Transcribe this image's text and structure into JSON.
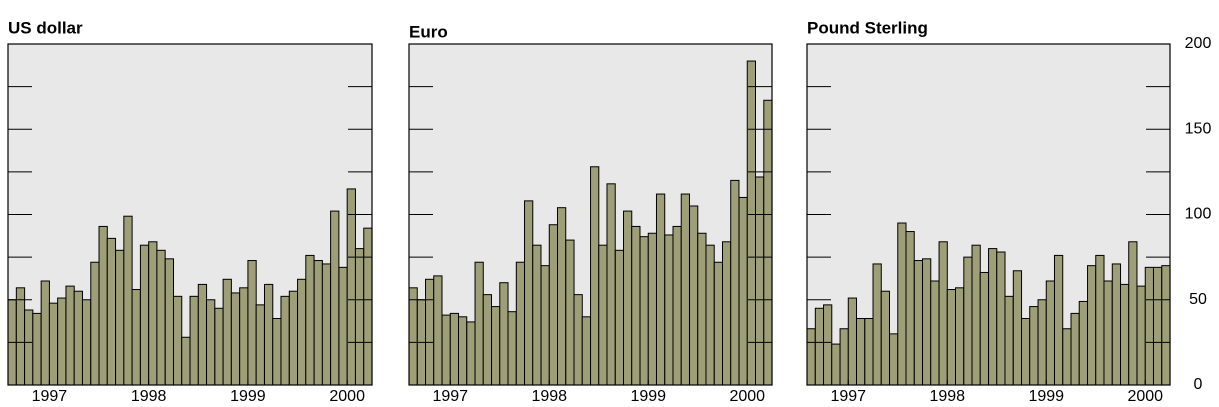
{
  "chart_data": [
    {
      "type": "bar",
      "title": "US dollar",
      "x": [
        1996.583,
        1996.667,
        1996.75,
        1996.833,
        1996.917,
        1997,
        1997.083,
        1997.167,
        1997.25,
        1997.333,
        1997.417,
        1997.5,
        1997.583,
        1997.667,
        1997.75,
        1997.833,
        1997.917,
        1998,
        1998.083,
        1998.167,
        1998.25,
        1998.333,
        1998.417,
        1998.5,
        1998.583,
        1998.667,
        1998.75,
        1998.833,
        1998.917,
        1999,
        1999.083,
        1999.167,
        1999.25,
        1999.333,
        1999.417,
        1999.5,
        1999.583,
        1999.667,
        1999.75,
        1999.833,
        1999.917,
        2000,
        2000.083,
        2000.167
      ],
      "values": [
        50,
        57,
        44,
        42,
        61,
        48,
        51,
        58,
        55,
        50,
        72,
        93,
        86,
        79,
        99,
        56,
        82,
        84,
        79,
        74,
        52,
        28,
        52,
        59,
        50,
        45,
        62,
        54,
        57,
        73,
        47,
        59,
        39,
        52,
        55,
        62,
        76,
        73,
        71,
        102,
        69,
        115,
        80,
        92
      ],
      "color": "#9e9e78",
      "background": "#e8e8e8",
      "xlim": [
        1996.583,
        2000.25
      ],
      "xticks": [
        1997,
        1998,
        1999,
        2000
      ],
      "ylim": [
        0,
        200
      ],
      "yticks": [
        0,
        50,
        100,
        150,
        200
      ],
      "yminorticks": [
        25,
        75,
        125,
        175
      ],
      "show_ytick_labels": false
    },
    {
      "type": "bar",
      "title": "Euro",
      "x": [
        1996.583,
        1996.667,
        1996.75,
        1996.833,
        1996.917,
        1997,
        1997.083,
        1997.167,
        1997.25,
        1997.333,
        1997.417,
        1997.5,
        1997.583,
        1997.667,
        1997.75,
        1997.833,
        1997.917,
        1998,
        1998.083,
        1998.167,
        1998.25,
        1998.333,
        1998.417,
        1998.5,
        1998.583,
        1998.667,
        1998.75,
        1998.833,
        1998.917,
        1999,
        1999.083,
        1999.167,
        1999.25,
        1999.333,
        1999.417,
        1999.5,
        1999.583,
        1999.667,
        1999.75,
        1999.833,
        1999.917,
        2000,
        2000.083,
        2000.167
      ],
      "values": [
        57,
        50,
        62,
        64,
        41,
        42,
        40,
        37,
        72,
        53,
        46,
        60,
        43,
        72,
        108,
        82,
        70,
        94,
        104,
        85,
        53,
        40,
        128,
        82,
        118,
        79,
        102,
        93,
        87,
        89,
        112,
        88,
        93,
        112,
        105,
        89,
        82,
        72,
        84,
        120,
        110,
        190,
        122,
        167
      ],
      "color": "#9e9e78",
      "background": "#e8e8e8",
      "xlim": [
        1996.583,
        2000.25
      ],
      "xticks": [
        1997,
        1998,
        1999,
        2000
      ],
      "ylim": [
        0,
        200
      ],
      "yticks": [
        0,
        50,
        100,
        150,
        200
      ],
      "yminorticks": [
        25,
        75,
        125,
        175
      ],
      "show_ytick_labels": false
    },
    {
      "type": "bar",
      "title": "Pound Sterling",
      "x": [
        1996.583,
        1996.667,
        1996.75,
        1996.833,
        1996.917,
        1997,
        1997.083,
        1997.167,
        1997.25,
        1997.333,
        1997.417,
        1997.5,
        1997.583,
        1997.667,
        1997.75,
        1997.833,
        1997.917,
        1998,
        1998.083,
        1998.167,
        1998.25,
        1998.333,
        1998.417,
        1998.5,
        1998.583,
        1998.667,
        1998.75,
        1998.833,
        1998.917,
        1999,
        1999.083,
        1999.167,
        1999.25,
        1999.333,
        1999.417,
        1999.5,
        1999.583,
        1999.667,
        1999.75,
        1999.833,
        1999.917,
        2000,
        2000.083,
        2000.167
      ],
      "values": [
        33,
        45,
        47,
        24,
        33,
        51,
        39,
        39,
        71,
        55,
        30,
        95,
        90,
        73,
        74,
        61,
        84,
        56,
        57,
        75,
        82,
        66,
        80,
        78,
        52,
        67,
        39,
        46,
        50,
        61,
        76,
        33,
        42,
        49,
        70,
        76,
        61,
        71,
        59,
        84,
        58,
        69,
        69,
        70
      ],
      "color": "#9e9e78",
      "background": "#e8e8e8",
      "xlim": [
        1996.583,
        2000.25
      ],
      "xticks": [
        1997,
        1998,
        1999,
        2000
      ],
      "ylim": [
        0,
        200
      ],
      "yticks": [
        0,
        50,
        100,
        150,
        200
      ],
      "yminorticks": [
        25,
        75,
        125,
        175
      ],
      "show_ytick_labels": true
    }
  ]
}
